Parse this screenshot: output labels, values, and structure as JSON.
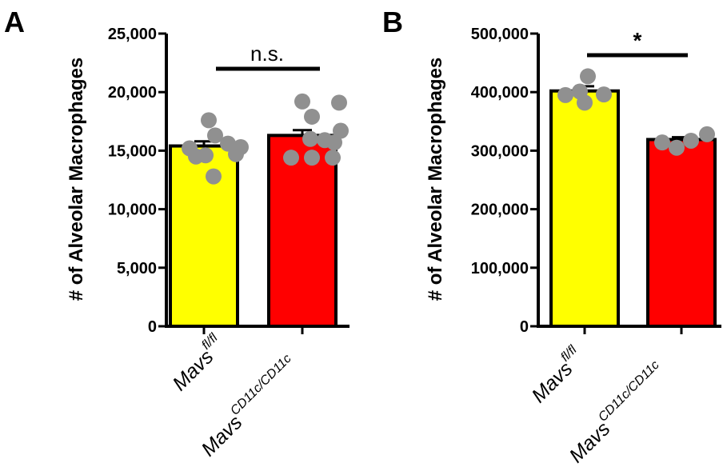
{
  "chart_data": [
    {
      "type": "bar",
      "panel_label": "A",
      "ylabel": "# of Alveolar Macrophages",
      "ylim": [
        0,
        25000
      ],
      "yticks": [
        0,
        5000,
        10000,
        15000,
        20000,
        25000
      ],
      "ytick_labels": [
        "0",
        "5,000",
        "10,000",
        "15,000",
        "20,000",
        "25,000"
      ],
      "categories": [
        {
          "main": "Mavs",
          "sup": "fl/fl"
        },
        {
          "main": "Mavs",
          "sup": "CD11c/CD11c"
        }
      ],
      "values": [
        15400,
        16300
      ],
      "sem": [
        400,
        450
      ],
      "bar_colors": [
        "#ffff00",
        "#ff0000"
      ],
      "points": [
        [
          17600,
          16300,
          15600,
          15300,
          15200,
          14700,
          14600,
          14500,
          12800
        ],
        [
          19200,
          19100,
          17900,
          16700,
          16000,
          15900,
          15700,
          14400,
          14400,
          14400
        ]
      ],
      "significance": "n.s.",
      "grid": false
    },
    {
      "type": "bar",
      "panel_label": "B",
      "ylabel": "# of Alveolar Macrophages",
      "ylim": [
        0,
        500000
      ],
      "yticks": [
        0,
        100000,
        200000,
        300000,
        400000,
        500000
      ],
      "ytick_labels": [
        "0",
        "100,000",
        "200,000",
        "300,000",
        "400,000",
        "500,000"
      ],
      "categories": [
        {
          "main": "Mavs",
          "sup": "fl/fl"
        },
        {
          "main": "Mavs",
          "sup": "CD11c/CD11c"
        }
      ],
      "values": [
        402000,
        319000
      ],
      "sem": [
        8000,
        4000
      ],
      "bar_colors": [
        "#ffff00",
        "#ff0000"
      ],
      "points": [
        [
          427000,
          401000,
          395000,
          396000,
          382000
        ],
        [
          328000,
          317000,
          314000,
          305000
        ]
      ],
      "significance": "*",
      "grid": false
    }
  ],
  "colors": {
    "point": "#909090",
    "axis": "#000000"
  }
}
